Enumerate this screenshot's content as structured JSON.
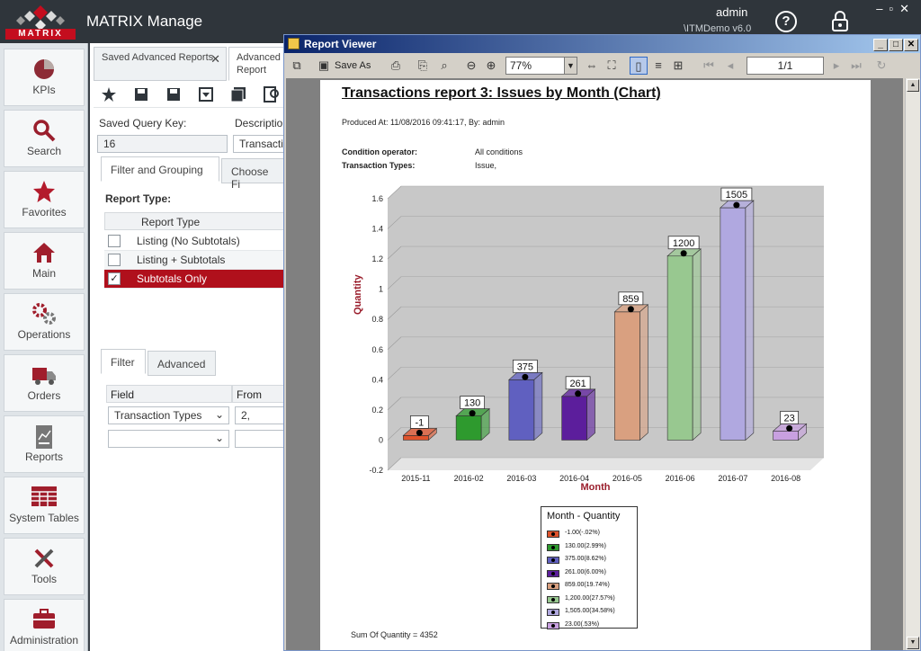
{
  "app": {
    "title": "MATRIX Manage",
    "logo_text": "MATRIX",
    "user": "admin",
    "db": "\\ITMDemo v6.0",
    "help_icon": "help-icon",
    "lock_icon": "lock-icon"
  },
  "leftnav": [
    {
      "label": "KPIs",
      "icon": "pie-chart-icon"
    },
    {
      "label": "Search",
      "icon": "search-icon"
    },
    {
      "label": "Favorites",
      "icon": "star-icon"
    },
    {
      "label": "Main",
      "icon": "home-icon"
    },
    {
      "label": "Operations",
      "icon": "gears-icon"
    },
    {
      "label": "Orders",
      "icon": "truck-icon"
    },
    {
      "label": "Reports",
      "icon": "report-icon"
    },
    {
      "label": "System Tables",
      "icon": "table-icon"
    },
    {
      "label": "Tools",
      "icon": "tools-icon"
    },
    {
      "label": "Administration",
      "icon": "briefcase-icon"
    }
  ],
  "background": {
    "tabs": [
      "Saved Advanced Reports",
      "Advanced Report"
    ],
    "saved_query_key_label": "Saved Query Key:",
    "saved_query_key": "16",
    "description_label": "Descriptio",
    "description": "Transactio",
    "subtabs": [
      "Filter and Grouping",
      "Choose Fi"
    ],
    "report_type_label": "Report Type:",
    "report_type_header": "Report Type",
    "report_types": [
      "Listing (No Subtotals)",
      "Listing + Subtotals",
      "Subtotals Only"
    ],
    "selected_report_type": "Subtotals Only",
    "filter_tabs": [
      "Filter",
      "Advanced"
    ],
    "filter_headers": [
      "Field",
      "From"
    ],
    "filter_row_field": "Transaction Types",
    "filter_row_from": "2,"
  },
  "viewer": {
    "title": "Report Viewer",
    "save_as": "Save As",
    "zoom": "77%",
    "page": "1/1",
    "report_title": "Transactions report 3: Issues by Month (Chart)",
    "produced": "Produced At: 11/08/2016 09:41:17, By: admin",
    "conditions": [
      {
        "label": "Condition operator:",
        "value": "All conditions"
      },
      {
        "label": "Transaction Types:",
        "value": "Issue,"
      }
    ],
    "sum": "Sum Of Quantity = 4352",
    "legend_title": "Month - Quantity"
  },
  "chart_data": {
    "type": "bar",
    "title": "",
    "xlabel": "Month",
    "ylabel": "Quantity",
    "categories": [
      "2015-11",
      "2016-02",
      "2016-03",
      "2016-04",
      "2016-05",
      "2016-06",
      "2016-07",
      "2016-08"
    ],
    "values": [
      -1,
      130,
      375,
      261,
      859,
      1200,
      1505,
      23
    ],
    "data_labels": [
      "-1",
      "130",
      "375",
      "261",
      "859",
      "1200",
      "1505",
      "23"
    ],
    "y_ticks": [
      "-0.2",
      "0",
      "0.2",
      "0.4",
      "0.6",
      "0.8",
      "1",
      "1.2",
      "1.4",
      "1.6"
    ],
    "bar_heights_axis": [
      0.03,
      0.16,
      0.4,
      0.29,
      0.85,
      1.22,
      1.54,
      0.06
    ],
    "ylim": [
      -0.2,
      1.6
    ],
    "colors": [
      "#e0532c",
      "#2e9a2e",
      "#6060c0",
      "#5c1e9c",
      "#d9a080",
      "#98c890",
      "#b0a8e0",
      "#c8a0e0"
    ],
    "legend": [
      "-1.00(-.02%)",
      "130.00(2.99%)",
      "375.00(8.62%)",
      "261.00(6.00%)",
      "859.00(19.74%)",
      "1,200.00(27.57%)",
      "1,505.00(34.58%)",
      "23.00(.53%)"
    ],
    "legend_position": "bottom",
    "grid": true
  }
}
